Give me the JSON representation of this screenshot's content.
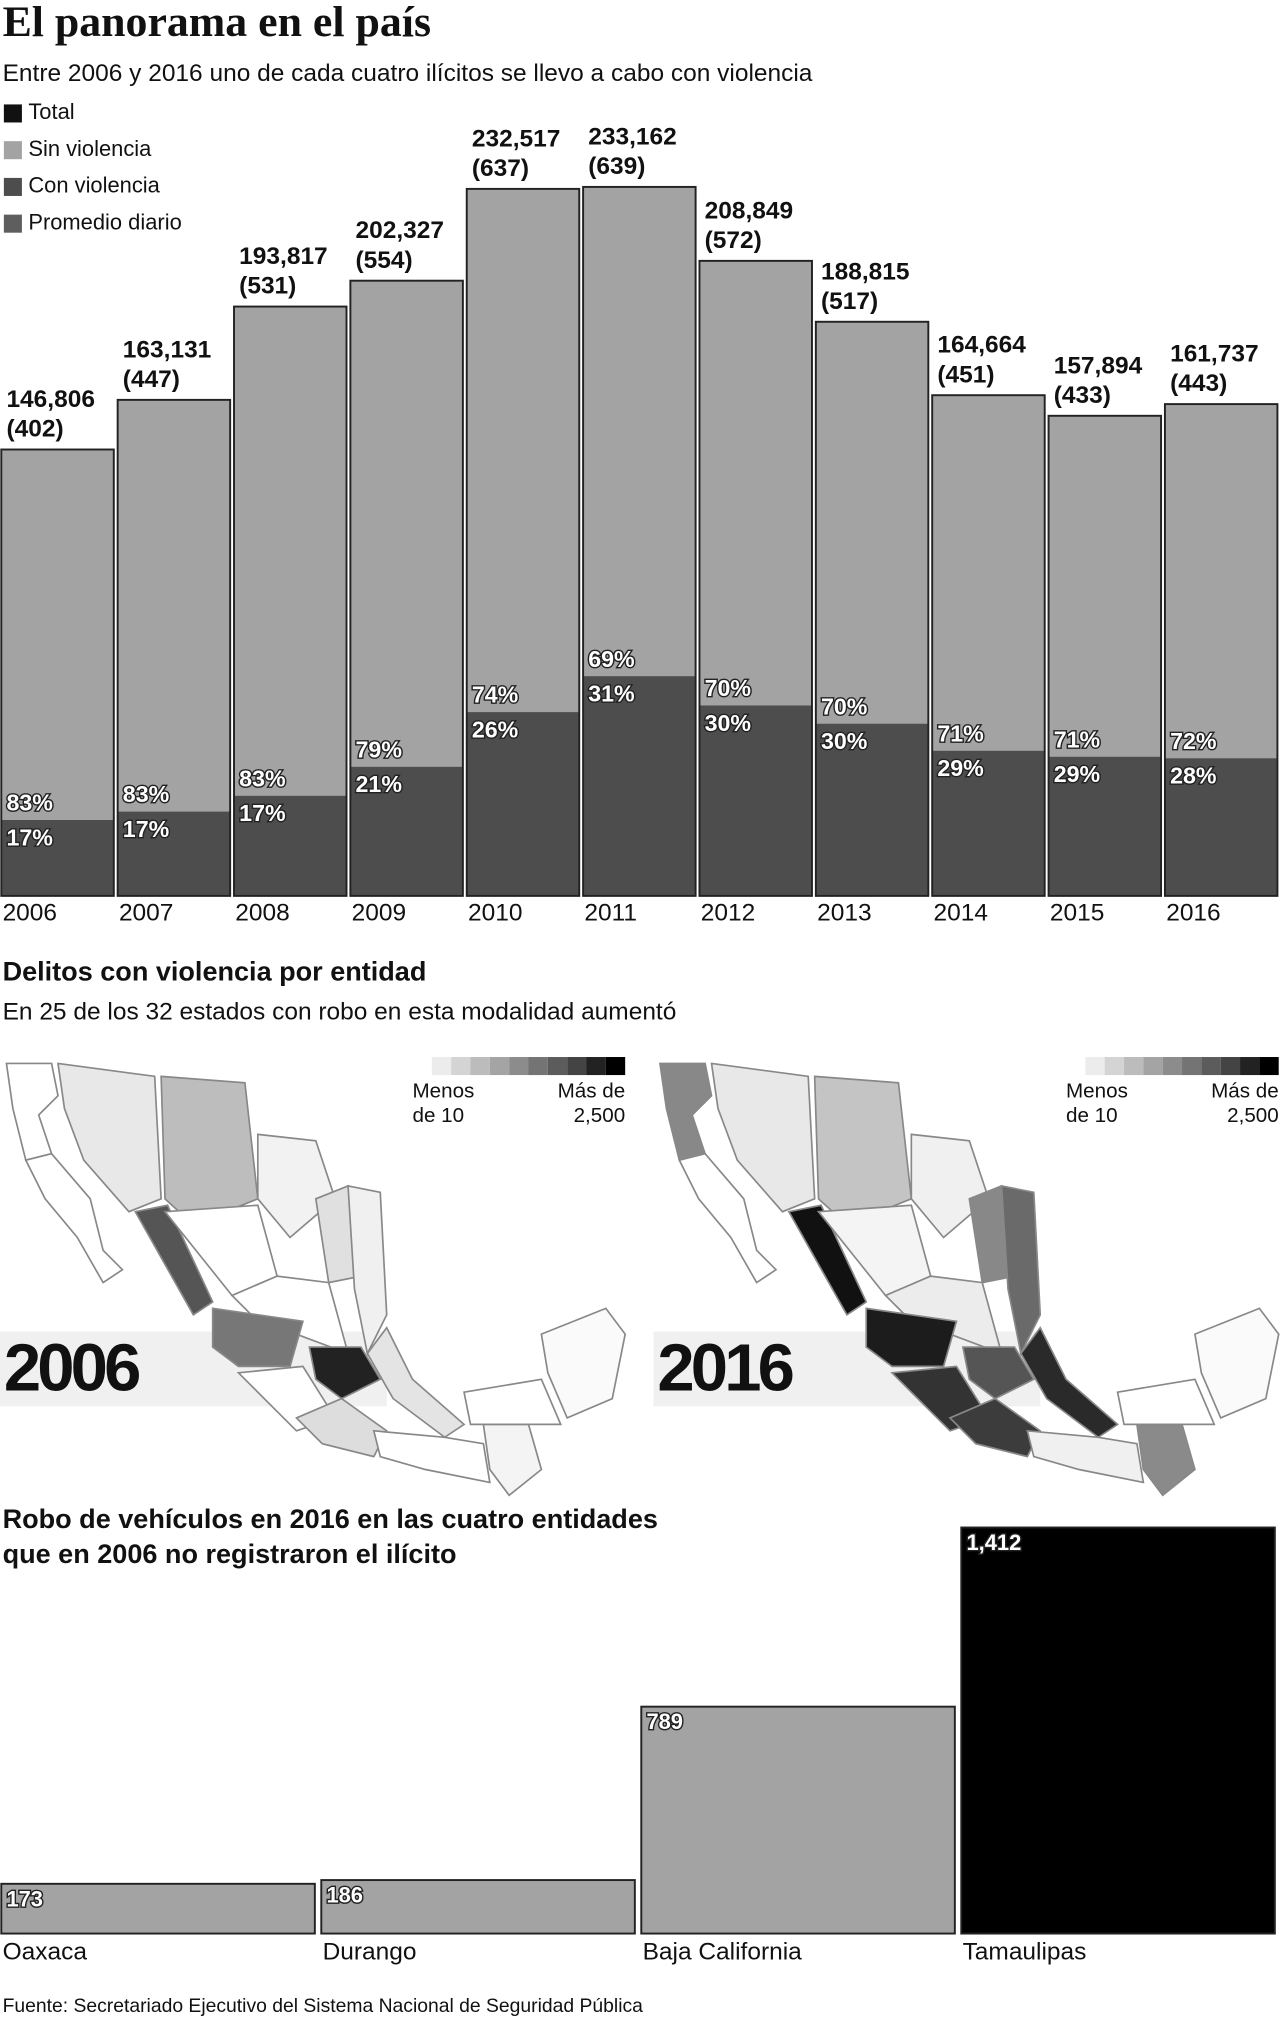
{
  "source": "Fuente: Secretariado Ejecutivo del Sistema Nacional de Seguridad Pública",
  "chart_data": [
    {
      "type": "stacked-bar",
      "title": "El panorama en el país",
      "subtitle": "Entre 2006 y 2016 uno de cada cuatro ilícitos se llevo a cabo con violencia",
      "categories": [
        "2006",
        "2007",
        "2008",
        "2009",
        "2010",
        "2011",
        "2012",
        "2013",
        "2014",
        "2015",
        "2016"
      ],
      "series": [
        {
          "name": "Total",
          "color": "#111111",
          "values": [
            146806,
            163131,
            193817,
            202327,
            232517,
            233162,
            208849,
            188815,
            164664,
            157894,
            161737
          ],
          "value_labels": [
            "146,806",
            "163,131",
            "193,817",
            "202,327",
            "232,517",
            "233,162",
            "208,849",
            "188,815",
            "164,664",
            "157,894",
            "161,737"
          ]
        },
        {
          "name": "Sin violencia",
          "color": "#a3a3a3",
          "values": [
            83,
            83,
            83,
            79,
            74,
            69,
            70,
            70,
            71,
            71,
            72
          ],
          "value_labels": [
            "83%",
            "83%",
            "83%",
            "79%",
            "74%",
            "69%",
            "70%",
            "70%",
            "71%",
            "71%",
            "72%"
          ]
        },
        {
          "name": "Con violencia",
          "color": "#4d4d4d",
          "values": [
            17,
            17,
            17,
            21,
            26,
            31,
            30,
            30,
            29,
            29,
            28
          ],
          "value_labels": [
            "17%",
            "17%",
            "17%",
            "21%",
            "26%",
            "31%",
            "30%",
            "30%",
            "29%",
            "29%",
            "28%"
          ]
        },
        {
          "name": "Promedio diario",
          "color": "#5e5e5e",
          "values": [
            402,
            447,
            531,
            554,
            637,
            639,
            572,
            517,
            451,
            433,
            443
          ],
          "value_labels": [
            "(402)",
            "(447)",
            "(531)",
            "(554)",
            "(637)",
            "(639)",
            "(572)",
            "(517)",
            "(451)",
            "(433)",
            "(443)"
          ]
        }
      ]
    },
    {
      "type": "map",
      "title": "Delitos con violencia por entidad",
      "subtitle": "En 25 de los 32 estados con robo en esta modalidad aumentó",
      "maps": [
        {
          "year": "2006"
        },
        {
          "year": "2016"
        }
      ],
      "legend_low": [
        "Menos",
        "de 10"
      ],
      "legend_high": [
        "Más de",
        "2,500"
      ],
      "scale_colors": [
        "#ececec",
        "#d4d4d4",
        "#bcbcbc",
        "#a4a4a4",
        "#8c8c8c",
        "#747474",
        "#5c5c5c",
        "#444444",
        "#222222",
        "#000000"
      ]
    },
    {
      "type": "bar",
      "title": [
        "Robo de vehículos en 2016 en las cuatro entidades",
        "que en 2006 no registraron el ilícito"
      ],
      "categories": [
        "Oaxaca",
        "Durango",
        "Baja California",
        "Tamaulipas"
      ],
      "values": [
        173,
        186,
        789,
        1412
      ],
      "value_labels": [
        "173",
        "186",
        "789",
        "1,412"
      ],
      "colors": [
        "#a3a3a3",
        "#a3a3a3",
        "#a3a3a3",
        "#000000"
      ]
    }
  ]
}
